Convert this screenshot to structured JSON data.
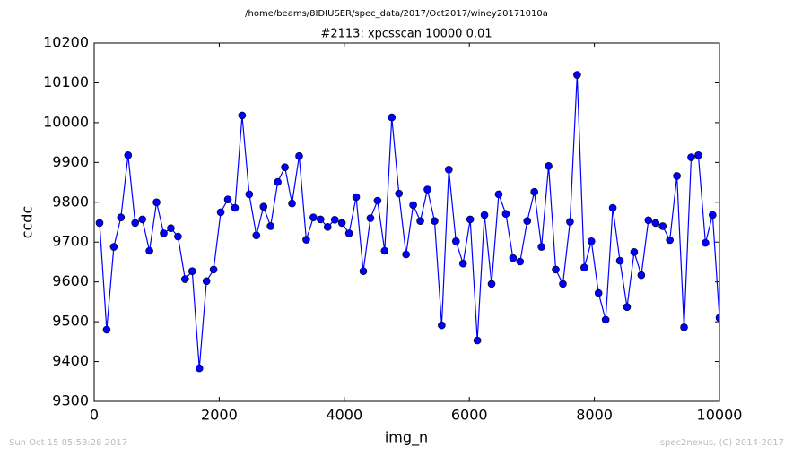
{
  "chart_data": {
    "type": "line",
    "suptitle": "/home/beams/8IDIUSER/spec_data/2017/Oct2017/winey20171010a",
    "title": "#2113: xpcsscan 10000 0.01",
    "x_label": "img_n",
    "y_label": "ccdc",
    "footer_left": "Sun Oct 15 05:58:28 2017",
    "footer_right": "spec2nexus, (C) 2014-2017",
    "x": [
      86,
      200,
      314,
      428,
      542,
      656,
      770,
      884,
      998,
      1112,
      1226,
      1340,
      1454,
      1568,
      1682,
      1796,
      1910,
      2024,
      2138,
      2252,
      2366,
      2480,
      2594,
      2708,
      2822,
      2936,
      3050,
      3164,
      3278,
      3392,
      3506,
      3620,
      3734,
      3848,
      3962,
      4076,
      4190,
      4304,
      4418,
      4532,
      4646,
      4760,
      4874,
      4988,
      5102,
      5216,
      5330,
      5444,
      5558,
      5672,
      5786,
      5900,
      6014,
      6128,
      6242,
      6356,
      6470,
      6584,
      6698,
      6812,
      6926,
      7040,
      7154,
      7268,
      7382,
      7496,
      7610,
      7724,
      7838,
      7952,
      8066,
      8180,
      8294,
      8408,
      8522,
      8636,
      8750,
      8864,
      8978,
      9092,
      9206,
      9320,
      9434,
      9548,
      9662,
      9776,
      9890,
      10000
    ],
    "series": [
      {
        "name": "ccdc",
        "color": "#0000ff",
        "values": [
          9748,
          9480,
          9688,
          9762,
          9918,
          9748,
          9757,
          9678,
          9800,
          9722,
          9735,
          9714,
          9607,
          9627,
          9383,
          9602,
          9631,
          9775,
          9807,
          9786,
          10018,
          9820,
          9717,
          9789,
          9740,
          9851,
          9888,
          9797,
          9916,
          9706,
          9762,
          9757,
          9738,
          9756,
          9748,
          9722,
          9813,
          9627,
          9760,
          9804,
          9678,
          10013,
          9822,
          9669,
          9793,
          9753,
          9832,
          9753,
          9491,
          9882,
          9702,
          9646,
          9757,
          9453,
          9768,
          9595,
          9820,
          9771,
          9660,
          9651,
          9753,
          9826,
          9688,
          9891,
          9631,
          9595,
          9751,
          10120,
          9636,
          9702,
          9572,
          9505,
          9786,
          9653,
          9537,
          9675,
          9617,
          9755,
          9748,
          9740,
          9705,
          9866,
          9486,
          9913,
          9918,
          9698,
          9768,
          9510
        ]
      }
    ],
    "xlim": [
      0,
      10000
    ],
    "xticks": [
      0,
      2000,
      4000,
      6000,
      8000,
      10000
    ],
    "ylim": [
      9300,
      10200
    ],
    "yticks": [
      9300,
      9400,
      9500,
      9600,
      9700,
      9800,
      9900,
      10000,
      10100,
      10200
    ]
  }
}
